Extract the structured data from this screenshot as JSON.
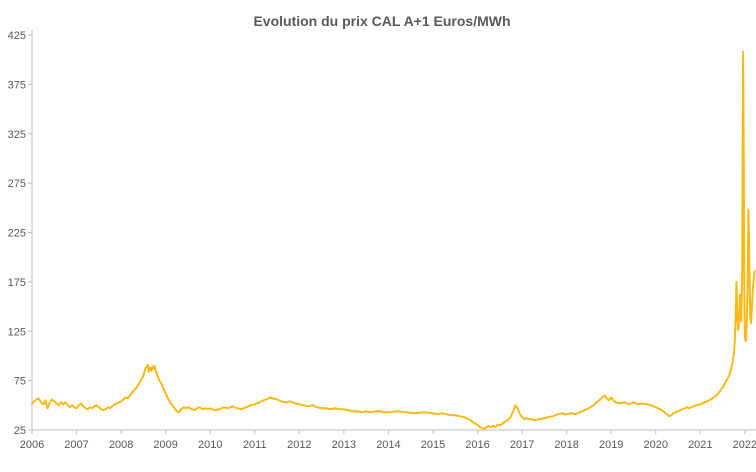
{
  "chart_data": {
    "type": "line",
    "title": "Evolution du prix CAL A+1 Euros/MWh",
    "xlabel": "",
    "ylabel": "",
    "unit": "Euros/MWh",
    "x_range": [
      2006,
      2022.25
    ],
    "y_range": [
      25,
      425
    ],
    "x_ticks": [
      2006,
      2007,
      2008,
      2009,
      2010,
      2011,
      2012,
      2013,
      2014,
      2015,
      2016,
      2017,
      2018,
      2019,
      2020,
      2021,
      2022
    ],
    "y_ticks": [
      25,
      75,
      125,
      175,
      225,
      275,
      325,
      375,
      425
    ],
    "grid": false,
    "legend": "none",
    "colors": {
      "line": "#FBB917",
      "axis": "#BFBFBF",
      "tick_label": "#595959",
      "title": "#595959",
      "background": "#FFFFFF"
    },
    "series": [
      {
        "name": "Prix CAL A+1",
        "points": [
          [
            2006.0,
            52
          ],
          [
            2006.05,
            54
          ],
          [
            2006.1,
            56
          ],
          [
            2006.15,
            57
          ],
          [
            2006.2,
            53
          ],
          [
            2006.25,
            51
          ],
          [
            2006.3,
            55
          ],
          [
            2006.35,
            47
          ],
          [
            2006.4,
            53
          ],
          [
            2006.45,
            56
          ],
          [
            2006.5,
            54
          ],
          [
            2006.55,
            52
          ],
          [
            2006.6,
            50
          ],
          [
            2006.65,
            53
          ],
          [
            2006.7,
            51
          ],
          [
            2006.75,
            53
          ],
          [
            2006.8,
            50
          ],
          [
            2006.85,
            48
          ],
          [
            2006.9,
            50
          ],
          [
            2006.95,
            48
          ],
          [
            2007.0,
            47
          ],
          [
            2007.05,
            50
          ],
          [
            2007.1,
            52
          ],
          [
            2007.15,
            49
          ],
          [
            2007.2,
            47
          ],
          [
            2007.25,
            46
          ],
          [
            2007.3,
            48
          ],
          [
            2007.35,
            47
          ],
          [
            2007.4,
            49
          ],
          [
            2007.45,
            50
          ],
          [
            2007.5,
            48
          ],
          [
            2007.55,
            46
          ],
          [
            2007.6,
            45
          ],
          [
            2007.65,
            46
          ],
          [
            2007.7,
            48
          ],
          [
            2007.75,
            47
          ],
          [
            2007.8,
            49
          ],
          [
            2007.85,
            51
          ],
          [
            2007.9,
            52
          ],
          [
            2007.95,
            53
          ],
          [
            2008.0,
            54
          ],
          [
            2008.05,
            56
          ],
          [
            2008.1,
            58
          ],
          [
            2008.15,
            57
          ],
          [
            2008.2,
            60
          ],
          [
            2008.25,
            63
          ],
          [
            2008.3,
            66
          ],
          [
            2008.35,
            68
          ],
          [
            2008.4,
            72
          ],
          [
            2008.45,
            76
          ],
          [
            2008.5,
            80
          ],
          [
            2008.55,
            88
          ],
          [
            2008.6,
            91
          ],
          [
            2008.62,
            84
          ],
          [
            2008.65,
            88
          ],
          [
            2008.68,
            85
          ],
          [
            2008.7,
            89
          ],
          [
            2008.73,
            87
          ],
          [
            2008.75,
            90
          ],
          [
            2008.8,
            82
          ],
          [
            2008.85,
            76
          ],
          [
            2008.9,
            72
          ],
          [
            2008.95,
            67
          ],
          [
            2009.0,
            62
          ],
          [
            2009.05,
            57
          ],
          [
            2009.1,
            53
          ],
          [
            2009.15,
            50
          ],
          [
            2009.2,
            47
          ],
          [
            2009.25,
            44
          ],
          [
            2009.3,
            43
          ],
          [
            2009.35,
            46
          ],
          [
            2009.4,
            48
          ],
          [
            2009.45,
            47
          ],
          [
            2009.5,
            48
          ],
          [
            2009.55,
            47
          ],
          [
            2009.6,
            46
          ],
          [
            2009.65,
            45
          ],
          [
            2009.7,
            47
          ],
          [
            2009.75,
            48
          ],
          [
            2009.8,
            47
          ],
          [
            2009.85,
            46
          ],
          [
            2009.9,
            47
          ],
          [
            2009.95,
            46
          ],
          [
            2010.0,
            47
          ],
          [
            2010.1,
            45
          ],
          [
            2010.2,
            46
          ],
          [
            2010.3,
            48
          ],
          [
            2010.4,
            47
          ],
          [
            2010.5,
            49
          ],
          [
            2010.6,
            47
          ],
          [
            2010.7,
            46
          ],
          [
            2010.8,
            48
          ],
          [
            2010.9,
            50
          ],
          [
            2011.0,
            51
          ],
          [
            2011.1,
            53
          ],
          [
            2011.2,
            55
          ],
          [
            2011.3,
            57
          ],
          [
            2011.35,
            58
          ],
          [
            2011.4,
            57
          ],
          [
            2011.5,
            56
          ],
          [
            2011.6,
            54
          ],
          [
            2011.7,
            53
          ],
          [
            2011.8,
            54
          ],
          [
            2011.9,
            52
          ],
          [
            2012.0,
            51
          ],
          [
            2012.1,
            50
          ],
          [
            2012.2,
            49
          ],
          [
            2012.3,
            50
          ],
          [
            2012.4,
            48
          ],
          [
            2012.5,
            47
          ],
          [
            2012.6,
            47
          ],
          [
            2012.7,
            46
          ],
          [
            2012.8,
            47
          ],
          [
            2012.9,
            46
          ],
          [
            2013.0,
            46
          ],
          [
            2013.1,
            45
          ],
          [
            2013.2,
            44
          ],
          [
            2013.3,
            44
          ],
          [
            2013.4,
            43
          ],
          [
            2013.5,
            44
          ],
          [
            2013.6,
            43
          ],
          [
            2013.7,
            44
          ],
          [
            2013.8,
            44
          ],
          [
            2013.9,
            43
          ],
          [
            2014.0,
            43
          ],
          [
            2014.2,
            44
          ],
          [
            2014.4,
            43
          ],
          [
            2014.6,
            42
          ],
          [
            2014.8,
            43
          ],
          [
            2015.0,
            42
          ],
          [
            2015.1,
            41
          ],
          [
            2015.2,
            42
          ],
          [
            2015.3,
            41
          ],
          [
            2015.4,
            40
          ],
          [
            2015.5,
            40
          ],
          [
            2015.6,
            39
          ],
          [
            2015.7,
            38
          ],
          [
            2015.8,
            36
          ],
          [
            2015.9,
            33
          ],
          [
            2016.0,
            30
          ],
          [
            2016.05,
            28
          ],
          [
            2016.1,
            27
          ],
          [
            2016.15,
            26
          ],
          [
            2016.2,
            28
          ],
          [
            2016.25,
            29
          ],
          [
            2016.3,
            28
          ],
          [
            2016.35,
            29
          ],
          [
            2016.4,
            28
          ],
          [
            2016.45,
            30
          ],
          [
            2016.5,
            30
          ],
          [
            2016.55,
            31
          ],
          [
            2016.6,
            33
          ],
          [
            2016.65,
            34
          ],
          [
            2016.7,
            36
          ],
          [
            2016.75,
            39
          ],
          [
            2016.8,
            44
          ],
          [
            2016.85,
            50
          ],
          [
            2016.9,
            47
          ],
          [
            2016.95,
            41
          ],
          [
            2017.0,
            38
          ],
          [
            2017.05,
            36
          ],
          [
            2017.1,
            37
          ],
          [
            2017.15,
            36
          ],
          [
            2017.2,
            36
          ],
          [
            2017.3,
            35
          ],
          [
            2017.4,
            36
          ],
          [
            2017.5,
            37
          ],
          [
            2017.6,
            38
          ],
          [
            2017.7,
            39
          ],
          [
            2017.8,
            41
          ],
          [
            2017.9,
            42
          ],
          [
            2017.95,
            41
          ],
          [
            2018.0,
            41
          ],
          [
            2018.1,
            42
          ],
          [
            2018.2,
            41
          ],
          [
            2018.3,
            43
          ],
          [
            2018.4,
            45
          ],
          [
            2018.5,
            47
          ],
          [
            2018.6,
            50
          ],
          [
            2018.7,
            54
          ],
          [
            2018.8,
            58
          ],
          [
            2018.85,
            60
          ],
          [
            2018.9,
            57
          ],
          [
            2018.95,
            55
          ],
          [
            2019.0,
            58
          ],
          [
            2019.05,
            55
          ],
          [
            2019.1,
            53
          ],
          [
            2019.2,
            52
          ],
          [
            2019.3,
            53
          ],
          [
            2019.4,
            51
          ],
          [
            2019.5,
            53
          ],
          [
            2019.6,
            51
          ],
          [
            2019.7,
            52
          ],
          [
            2019.8,
            51
          ],
          [
            2019.9,
            50
          ],
          [
            2020.0,
            48
          ],
          [
            2020.1,
            46
          ],
          [
            2020.2,
            43
          ],
          [
            2020.25,
            41
          ],
          [
            2020.3,
            39
          ],
          [
            2020.35,
            40
          ],
          [
            2020.4,
            42
          ],
          [
            2020.5,
            44
          ],
          [
            2020.6,
            46
          ],
          [
            2020.7,
            48
          ],
          [
            2020.75,
            47
          ],
          [
            2020.8,
            48
          ],
          [
            2020.9,
            50
          ],
          [
            2021.0,
            51
          ],
          [
            2021.1,
            53
          ],
          [
            2021.2,
            55
          ],
          [
            2021.3,
            58
          ],
          [
            2021.4,
            62
          ],
          [
            2021.5,
            68
          ],
          [
            2021.55,
            72
          ],
          [
            2021.6,
            76
          ],
          [
            2021.65,
            80
          ],
          [
            2021.7,
            88
          ],
          [
            2021.73,
            95
          ],
          [
            2021.76,
            105
          ],
          [
            2021.78,
            120
          ],
          [
            2021.8,
            150
          ],
          [
            2021.81,
            175
          ],
          [
            2021.83,
            140
          ],
          [
            2021.85,
            126
          ],
          [
            2021.87,
            138
          ],
          [
            2021.89,
            162
          ],
          [
            2021.9,
            148
          ],
          [
            2021.92,
            135
          ],
          [
            2021.94,
            185
          ],
          [
            2021.96,
            408
          ],
          [
            2021.975,
            300
          ],
          [
            2021.99,
            150
          ],
          [
            2022.0,
            120
          ],
          [
            2022.02,
            115
          ],
          [
            2022.04,
            130
          ],
          [
            2022.06,
            165
          ],
          [
            2022.08,
            248
          ],
          [
            2022.1,
            195
          ],
          [
            2022.12,
            140
          ],
          [
            2022.14,
            133
          ],
          [
            2022.16,
            150
          ],
          [
            2022.18,
            168
          ],
          [
            2022.2,
            178
          ],
          [
            2022.22,
            186
          ]
        ]
      }
    ]
  }
}
